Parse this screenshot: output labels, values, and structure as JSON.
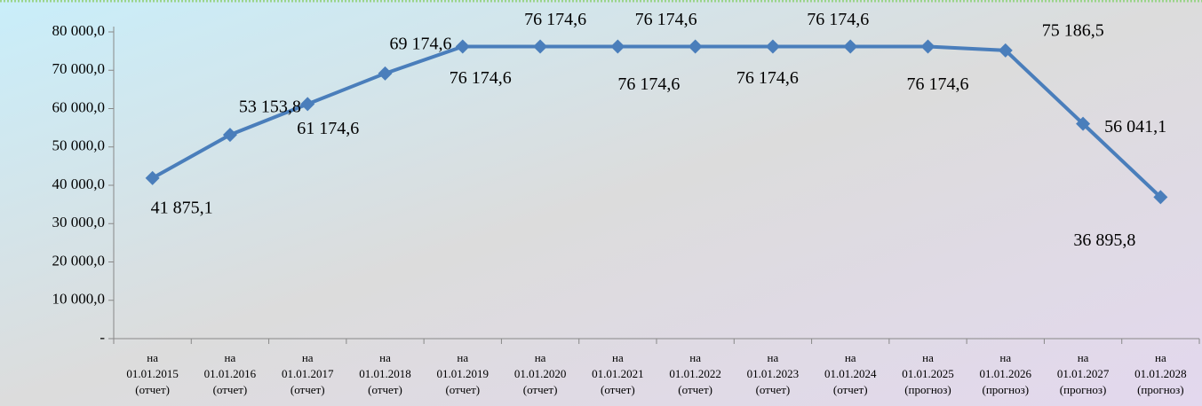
{
  "chart_data": {
    "type": "line",
    "categories": [
      "на\n01.01.2015\n(отчет)",
      "на\n01.01.2016\n(отчет)",
      "на\n01.01.2017\n(отчет)",
      "на\n01.01.2018\n(отчет)",
      "на\n01.01.2019\n(отчет)",
      "на\n01.01.2020\n(отчет)",
      "на\n01.01.2021\n(отчет)",
      "на\n01.01.2022\n(отчет)",
      "на\n01.01.2023\n(отчет)",
      "на\n01.01.2024\n(отчет)",
      "на\n01.01.2025\n(прогноз)",
      "на\n01.01.2026\n(прогноз)",
      "на\n01.01.2027\n(прогноз)",
      "на\n01.01.2028\n(прогноз)"
    ],
    "values": [
      41875.1,
      53153.8,
      61174.6,
      69174.6,
      76174.6,
      76174.6,
      76174.6,
      76174.6,
      76174.6,
      76174.6,
      76174.6,
      75186.5,
      56041.1,
      36895.8
    ],
    "value_labels": [
      "41 875,1",
      "53 153,8",
      "61 174,6",
      "69 174,6",
      "76 174,6",
      "76 174,6",
      "76 174,6",
      "76 174,6",
      "76 174,6",
      "76 174,6",
      "76 174,6",
      "75 186,5",
      "56 041,1",
      "36 895,8"
    ],
    "color": "#4a7ebb",
    "ylim": [
      0,
      80000
    ],
    "yticks": [
      {
        "value": 0,
        "label": "-"
      },
      {
        "value": 10000,
        "label": "10 000,0"
      },
      {
        "value": 20000,
        "label": "20 000,0"
      },
      {
        "value": 30000,
        "label": "30 000,0"
      },
      {
        "value": 40000,
        "label": "40 000,0"
      },
      {
        "value": 50000,
        "label": "50 000,0"
      },
      {
        "value": 60000,
        "label": "60 000,0"
      },
      {
        "value": 70000,
        "label": "70 000,0"
      },
      {
        "value": 80000,
        "label": "80 000,0"
      }
    ],
    "grid": false
  }
}
